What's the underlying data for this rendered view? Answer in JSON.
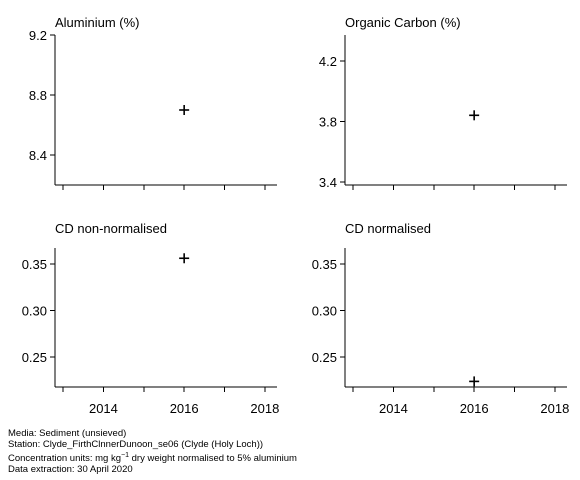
{
  "chart_data": [
    {
      "type": "scatter",
      "title": "Aluminium (%)",
      "x": [
        2016
      ],
      "y": [
        8.7
      ],
      "xlim": [
        2012.8,
        2018.3
      ],
      "ylim": [
        8.2,
        9.2
      ],
      "yticks": [
        "8.4",
        "8.8",
        "9.2"
      ],
      "xticks": [],
      "marker": "plus"
    },
    {
      "type": "scatter",
      "title": "Organic Carbon (%)",
      "x": [
        2016
      ],
      "y": [
        3.84
      ],
      "xlim": [
        2012.8,
        2018.3
      ],
      "ylim": [
        3.38,
        4.37
      ],
      "yticks": [
        "3.4",
        "3.8",
        "4.2"
      ],
      "xticks": [],
      "marker": "plus"
    },
    {
      "type": "scatter",
      "title": "CD non-normalised",
      "x": [
        2016
      ],
      "y": [
        0.356
      ],
      "xlim": [
        2012.8,
        2018.3
      ],
      "ylim": [
        0.218,
        0.367
      ],
      "yticks": [
        "0.25",
        "0.30",
        "0.35"
      ],
      "xticks": [
        "2014",
        "2016",
        "2018"
      ],
      "marker": "plus"
    },
    {
      "type": "scatter",
      "title": "CD normalised",
      "x": [
        2016
      ],
      "y": [
        0.224
      ],
      "xlim": [
        2012.8,
        2018.3
      ],
      "ylim": [
        0.218,
        0.367
      ],
      "yticks": [
        "0.25",
        "0.30",
        "0.35"
      ],
      "xticks": [
        "2014",
        "2016",
        "2018"
      ],
      "marker": "plus"
    }
  ],
  "footer": {
    "media": "Media: Sediment (unsieved)",
    "station": "Station: Clyde_FirthClnnerDunoon_se06 (Clyde (Holy Loch))",
    "units_prefix": "Concentration units:  mg kg",
    "units_sup": "−1",
    "units_suffix": " dry weight normalised to 5% aluminium",
    "extraction": "Data extraction: 30 April 2020"
  }
}
